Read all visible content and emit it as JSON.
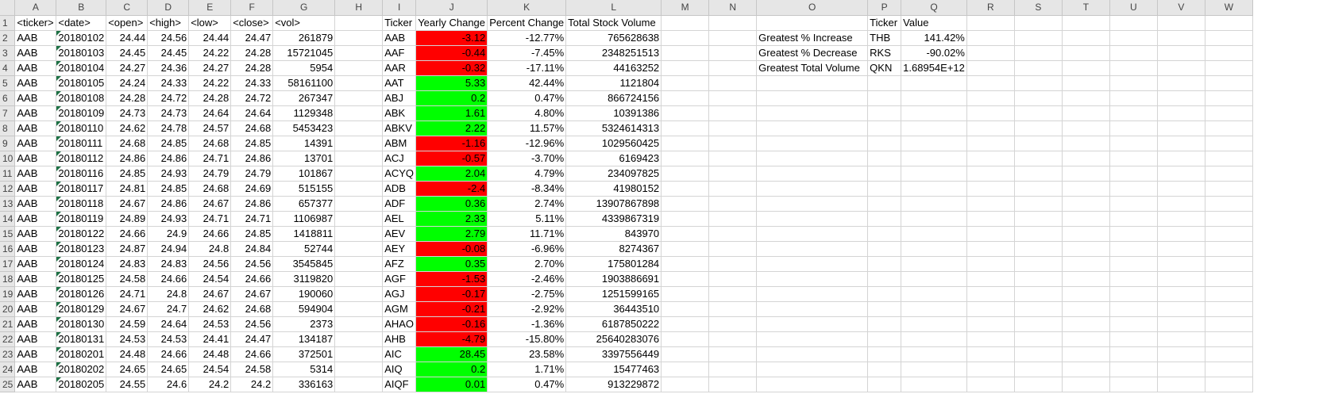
{
  "columns": [
    "A",
    "B",
    "C",
    "D",
    "E",
    "F",
    "G",
    "H",
    "I",
    "J",
    "K",
    "L",
    "M",
    "N",
    "O",
    "P",
    "Q",
    "R",
    "S",
    "T",
    "U",
    "V",
    "W"
  ],
  "raw_headers": [
    "<ticker>",
    "<date>",
    "<open>",
    "<high>",
    "<low>",
    "<close>",
    "<vol>"
  ],
  "summary_headers": [
    "Ticker",
    "Yearly Change",
    "Percent Change",
    "Total Stock Volume"
  ],
  "greatest": {
    "header_ticker": "Ticker",
    "header_value": "Value",
    "rows": [
      {
        "label": "Greatest % Increase",
        "ticker": "THB",
        "value": "141.42%"
      },
      {
        "label": "Greatest % Decrease",
        "ticker": "RKS",
        "value": "-90.02%"
      },
      {
        "label": "Greatest Total Volume",
        "ticker": "QKN",
        "value": "1.68954E+12"
      }
    ]
  },
  "colors": {
    "positive": "#00ff00",
    "negative": "#ff0000"
  },
  "rows": [
    {
      "n": "2",
      "raw": [
        "AAB",
        "20180102",
        "24.44",
        "24.56",
        "24.44",
        "24.47",
        "261879"
      ],
      "sum": [
        "AAB",
        "-3.12",
        "-12.77%",
        "765628638"
      ],
      "sign": "neg"
    },
    {
      "n": "3",
      "raw": [
        "AAB",
        "20180103",
        "24.45",
        "24.45",
        "24.22",
        "24.28",
        "15721045"
      ],
      "sum": [
        "AAF",
        "-0.44",
        "-7.45%",
        "2348251513"
      ],
      "sign": "neg"
    },
    {
      "n": "4",
      "raw": [
        "AAB",
        "20180104",
        "24.27",
        "24.36",
        "24.27",
        "24.28",
        "5954"
      ],
      "sum": [
        "AAR",
        "-0.32",
        "-17.11%",
        "44163252"
      ],
      "sign": "neg"
    },
    {
      "n": "5",
      "raw": [
        "AAB",
        "20180105",
        "24.24",
        "24.33",
        "24.22",
        "24.33",
        "58161100"
      ],
      "sum": [
        "AAT",
        "5.33",
        "42.44%",
        "1121804"
      ],
      "sign": "pos"
    },
    {
      "n": "6",
      "raw": [
        "AAB",
        "20180108",
        "24.28",
        "24.72",
        "24.28",
        "24.72",
        "267347"
      ],
      "sum": [
        "ABJ",
        "0.2",
        "0.47%",
        "866724156"
      ],
      "sign": "pos"
    },
    {
      "n": "7",
      "raw": [
        "AAB",
        "20180109",
        "24.73",
        "24.73",
        "24.64",
        "24.64",
        "1129348"
      ],
      "sum": [
        "ABK",
        "1.61",
        "4.80%",
        "10391386"
      ],
      "sign": "pos"
    },
    {
      "n": "8",
      "raw": [
        "AAB",
        "20180110",
        "24.62",
        "24.78",
        "24.57",
        "24.68",
        "5453423"
      ],
      "sum": [
        "ABKV",
        "2.22",
        "11.57%",
        "5324614313"
      ],
      "sign": "pos"
    },
    {
      "n": "9",
      "raw": [
        "AAB",
        "20180111",
        "24.68",
        "24.85",
        "24.68",
        "24.85",
        "14391"
      ],
      "sum": [
        "ABM",
        "-1.16",
        "-12.96%",
        "1029560425"
      ],
      "sign": "neg"
    },
    {
      "n": "10",
      "raw": [
        "AAB",
        "20180112",
        "24.86",
        "24.86",
        "24.71",
        "24.86",
        "13701"
      ],
      "sum": [
        "ACJ",
        "-0.57",
        "-3.70%",
        "6169423"
      ],
      "sign": "neg"
    },
    {
      "n": "11",
      "raw": [
        "AAB",
        "20180116",
        "24.85",
        "24.93",
        "24.79",
        "24.79",
        "101867"
      ],
      "sum": [
        "ACYQ",
        "2.04",
        "4.79%",
        "234097825"
      ],
      "sign": "pos"
    },
    {
      "n": "12",
      "raw": [
        "AAB",
        "20180117",
        "24.81",
        "24.85",
        "24.68",
        "24.69",
        "515155"
      ],
      "sum": [
        "ADB",
        "-2.4",
        "-8.34%",
        "41980152"
      ],
      "sign": "neg"
    },
    {
      "n": "13",
      "raw": [
        "AAB",
        "20180118",
        "24.67",
        "24.86",
        "24.67",
        "24.86",
        "657377"
      ],
      "sum": [
        "ADF",
        "0.36",
        "2.74%",
        "13907867898"
      ],
      "sign": "pos"
    },
    {
      "n": "14",
      "raw": [
        "AAB",
        "20180119",
        "24.89",
        "24.93",
        "24.71",
        "24.71",
        "1106987"
      ],
      "sum": [
        "AEL",
        "2.33",
        "5.11%",
        "4339867319"
      ],
      "sign": "pos"
    },
    {
      "n": "15",
      "raw": [
        "AAB",
        "20180122",
        "24.66",
        "24.9",
        "24.66",
        "24.85",
        "1418811"
      ],
      "sum": [
        "AEV",
        "2.79",
        "11.71%",
        "843970"
      ],
      "sign": "pos"
    },
    {
      "n": "16",
      "raw": [
        "AAB",
        "20180123",
        "24.87",
        "24.94",
        "24.8",
        "24.84",
        "52744"
      ],
      "sum": [
        "AEY",
        "-0.08",
        "-6.96%",
        "8274367"
      ],
      "sign": "neg"
    },
    {
      "n": "17",
      "raw": [
        "AAB",
        "20180124",
        "24.83",
        "24.83",
        "24.56",
        "24.56",
        "3545845"
      ],
      "sum": [
        "AFZ",
        "0.35",
        "2.70%",
        "175801284"
      ],
      "sign": "pos"
    },
    {
      "n": "18",
      "raw": [
        "AAB",
        "20180125",
        "24.58",
        "24.66",
        "24.54",
        "24.66",
        "3119820"
      ],
      "sum": [
        "AGF",
        "-1.53",
        "-2.46%",
        "1903886691"
      ],
      "sign": "neg"
    },
    {
      "n": "19",
      "raw": [
        "AAB",
        "20180126",
        "24.71",
        "24.8",
        "24.67",
        "24.67",
        "190060"
      ],
      "sum": [
        "AGJ",
        "-0.17",
        "-2.75%",
        "1251599165"
      ],
      "sign": "neg"
    },
    {
      "n": "20",
      "raw": [
        "AAB",
        "20180129",
        "24.67",
        "24.7",
        "24.62",
        "24.68",
        "594904"
      ],
      "sum": [
        "AGM",
        "-0.21",
        "-2.92%",
        "36443510"
      ],
      "sign": "neg"
    },
    {
      "n": "21",
      "raw": [
        "AAB",
        "20180130",
        "24.59",
        "24.64",
        "24.53",
        "24.56",
        "2373"
      ],
      "sum": [
        "AHAO",
        "-0.16",
        "-1.36%",
        "6187850222"
      ],
      "sign": "neg"
    },
    {
      "n": "22",
      "raw": [
        "AAB",
        "20180131",
        "24.53",
        "24.53",
        "24.41",
        "24.47",
        "134187"
      ],
      "sum": [
        "AHB",
        "-4.79",
        "-15.80%",
        "25640283076"
      ],
      "sign": "neg"
    },
    {
      "n": "23",
      "raw": [
        "AAB",
        "20180201",
        "24.48",
        "24.66",
        "24.48",
        "24.66",
        "372501"
      ],
      "sum": [
        "AIC",
        "28.45",
        "23.58%",
        "3397556449"
      ],
      "sign": "pos"
    },
    {
      "n": "24",
      "raw": [
        "AAB",
        "20180202",
        "24.65",
        "24.65",
        "24.54",
        "24.58",
        "5314"
      ],
      "sum": [
        "AIQ",
        "0.2",
        "1.71%",
        "15477463"
      ],
      "sign": "pos"
    },
    {
      "n": "25",
      "raw": [
        "AAB",
        "20180205",
        "24.55",
        "24.6",
        "24.2",
        "24.2",
        "336163"
      ],
      "sum": [
        "AIQF",
        "0.01",
        "0.47%",
        "913229872"
      ],
      "sign": "pos"
    }
  ]
}
